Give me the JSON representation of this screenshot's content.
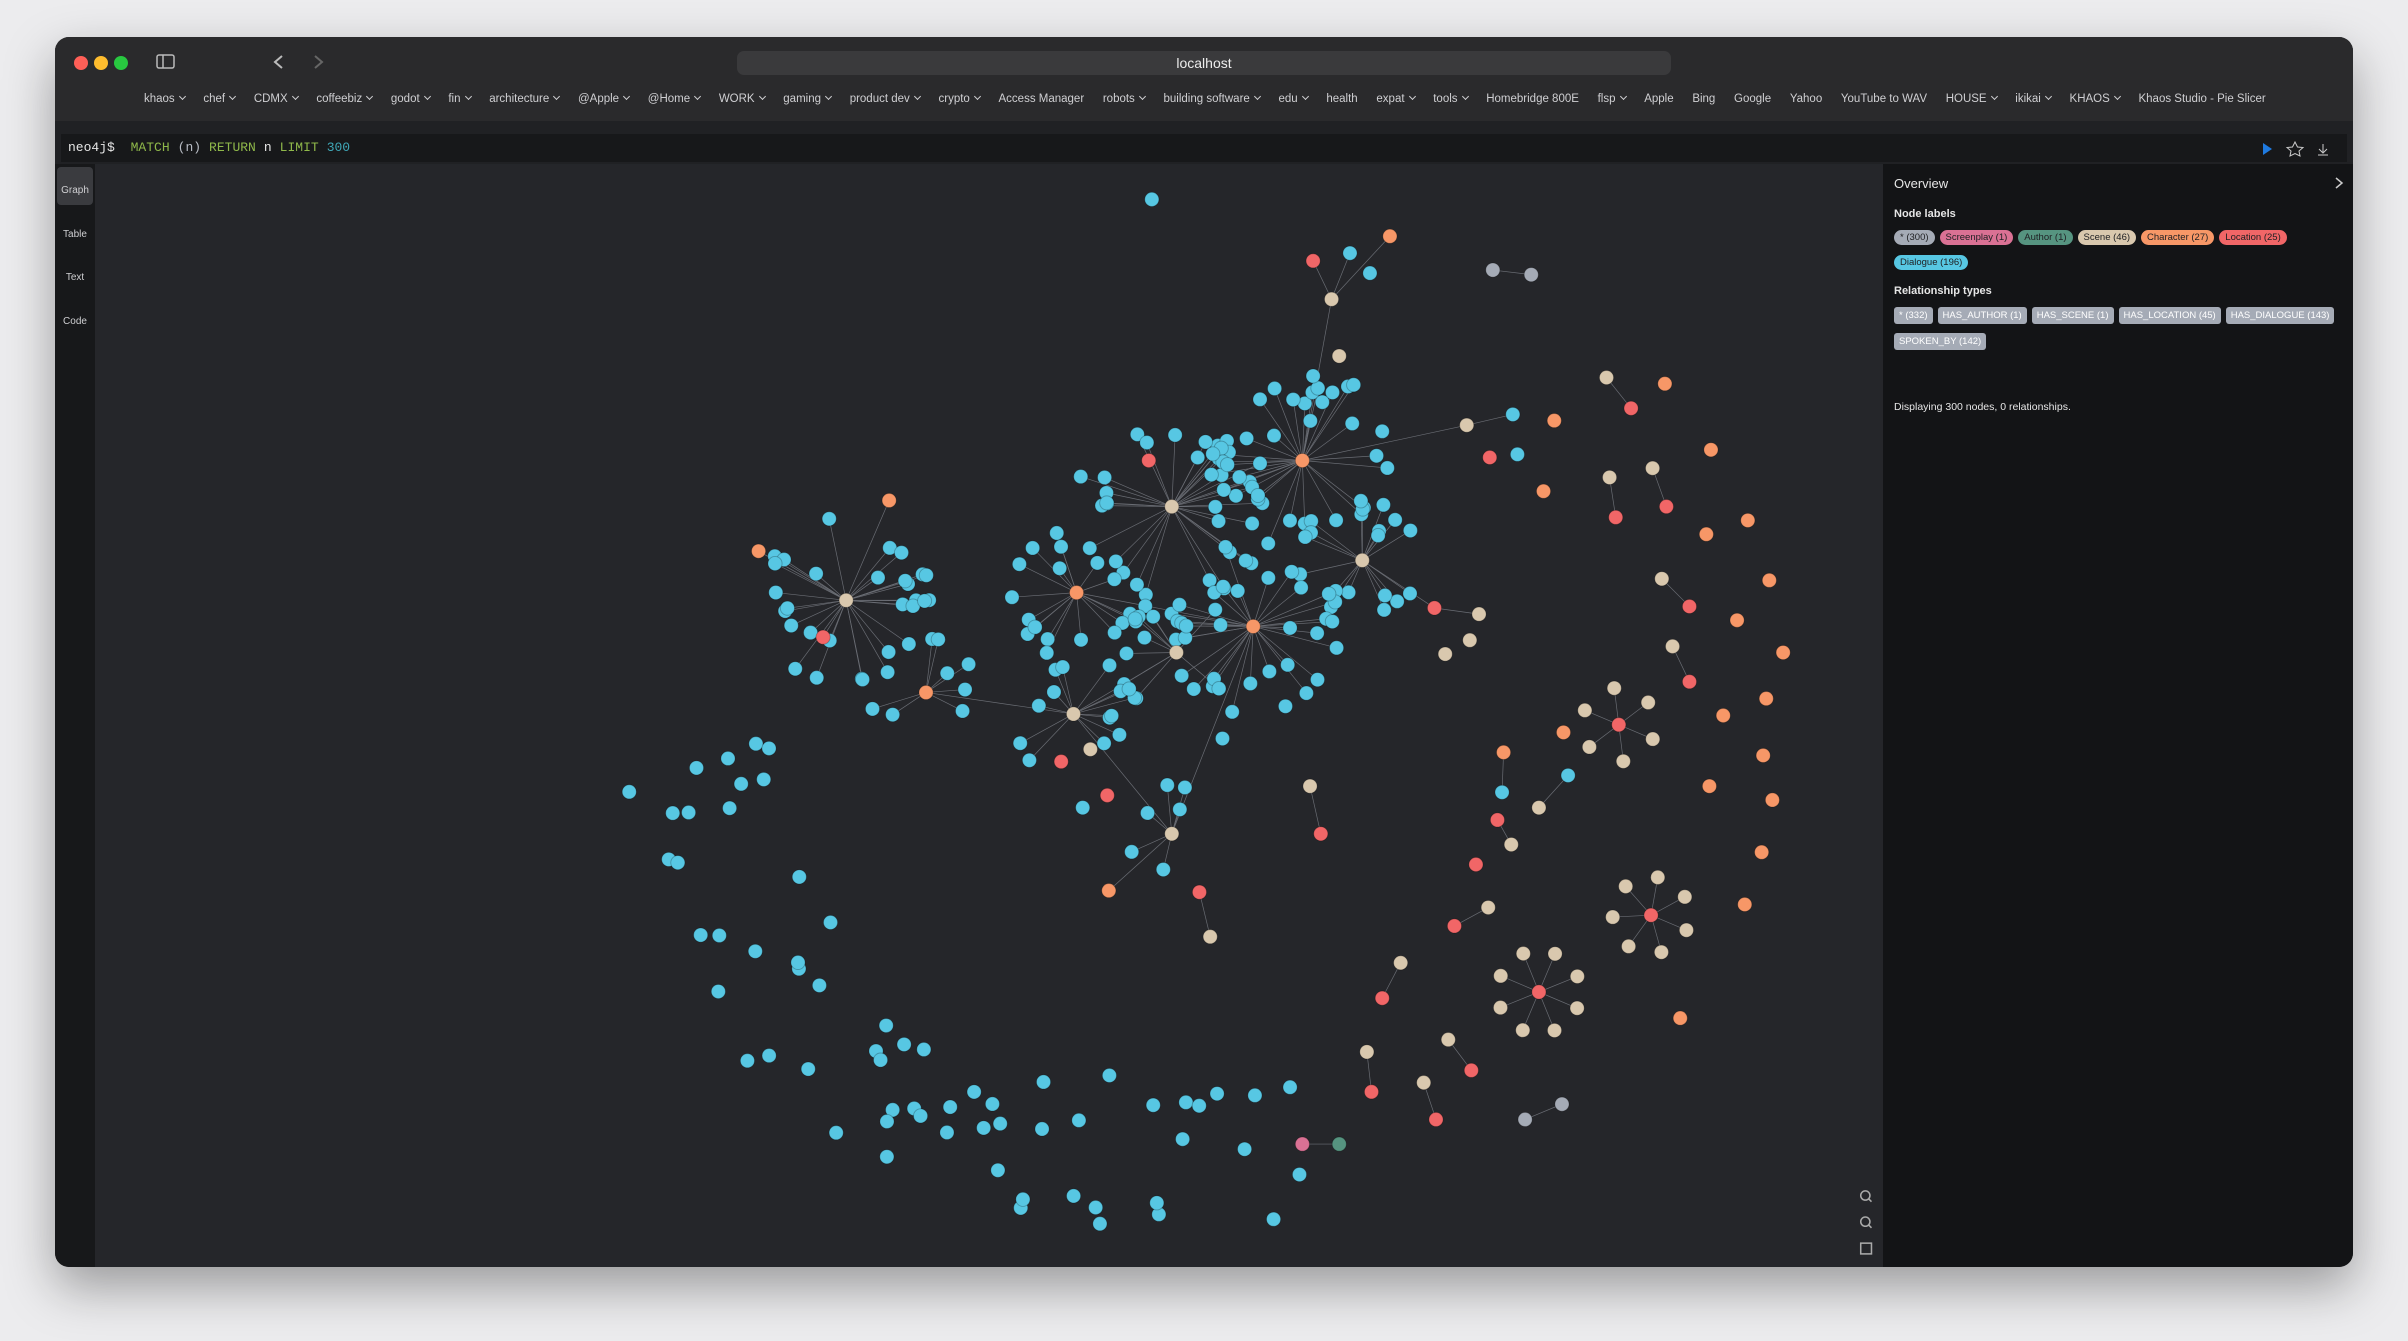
{
  "browser": {
    "url": "localhost",
    "bookmarks": [
      {
        "label": "khaos",
        "folder": true
      },
      {
        "label": "chef",
        "folder": true
      },
      {
        "label": "CDMX",
        "folder": true
      },
      {
        "label": "coffeebiz",
        "folder": true
      },
      {
        "label": "godot",
        "folder": true
      },
      {
        "label": "fin",
        "folder": true
      },
      {
        "label": "architecture",
        "folder": true
      },
      {
        "label": "@Apple",
        "folder": true
      },
      {
        "label": "@Home",
        "folder": true
      },
      {
        "label": "WORK",
        "folder": true
      },
      {
        "label": "gaming",
        "folder": true
      },
      {
        "label": "product dev",
        "folder": true
      },
      {
        "label": "crypto",
        "folder": true
      },
      {
        "label": "Access Manager",
        "folder": false
      },
      {
        "label": "robots",
        "folder": true
      },
      {
        "label": "building software",
        "folder": true
      },
      {
        "label": "edu",
        "folder": true
      },
      {
        "label": "health",
        "folder": false
      },
      {
        "label": "expat",
        "folder": true
      },
      {
        "label": "tools",
        "folder": true
      },
      {
        "label": "Homebridge 800E",
        "folder": false
      },
      {
        "label": "flsp",
        "folder": true
      },
      {
        "label": "Apple",
        "folder": false
      },
      {
        "label": "Bing",
        "folder": false
      },
      {
        "label": "Google",
        "folder": false
      },
      {
        "label": "Yahoo",
        "folder": false
      },
      {
        "label": "YouTube to WAV",
        "folder": false
      },
      {
        "label": "HOUSE",
        "folder": true
      },
      {
        "label": "ikikai",
        "folder": true
      },
      {
        "label": "KHAOS",
        "folder": true
      },
      {
        "label": "Khaos Studio - Pie Slicer",
        "folder": false
      }
    ]
  },
  "editor": {
    "prompt": "neo4j$",
    "query": [
      {
        "text": "MATCH",
        "color": "#8fb84a"
      },
      {
        "text": "(n)",
        "color": "#b8bcc4"
      },
      {
        "text": "RETURN",
        "color": "#8fb84a"
      },
      {
        "text": "n",
        "color": "#e6e6e6"
      },
      {
        "text": "LIMIT",
        "color": "#8fb84a"
      },
      {
        "text": "300",
        "color": "#3fa8b8"
      }
    ]
  },
  "sidebar": [
    "Graph",
    "Table",
    "Text",
    "Code"
  ],
  "overview": {
    "title": "Overview",
    "node_labels_heading": "Node labels",
    "node_labels": [
      {
        "text": "* (300)",
        "color": "#a5abb6"
      },
      {
        "text": "Screenplay (1)",
        "color": "#da7194"
      },
      {
        "text": "Author (1)",
        "color": "#569480"
      },
      {
        "text": "Scene (46)",
        "color": "#d9c8ae"
      },
      {
        "text": "Character (27)",
        "color": "#f79767"
      },
      {
        "text": "Location (25)",
        "color": "#f16667"
      },
      {
        "text": "Dialogue (196)",
        "color": "#57c7e3"
      }
    ],
    "relationship_types_heading": "Relationship types",
    "relationship_types": [
      "* (332)",
      "HAS_AUTHOR (1)",
      "HAS_SCENE (1)",
      "HAS_LOCATION (45)",
      "HAS_DIALOGUE (143)",
      "SPOKEN_BY (142)"
    ],
    "status": "Displaying 300 nodes, 0 relationships."
  }
}
